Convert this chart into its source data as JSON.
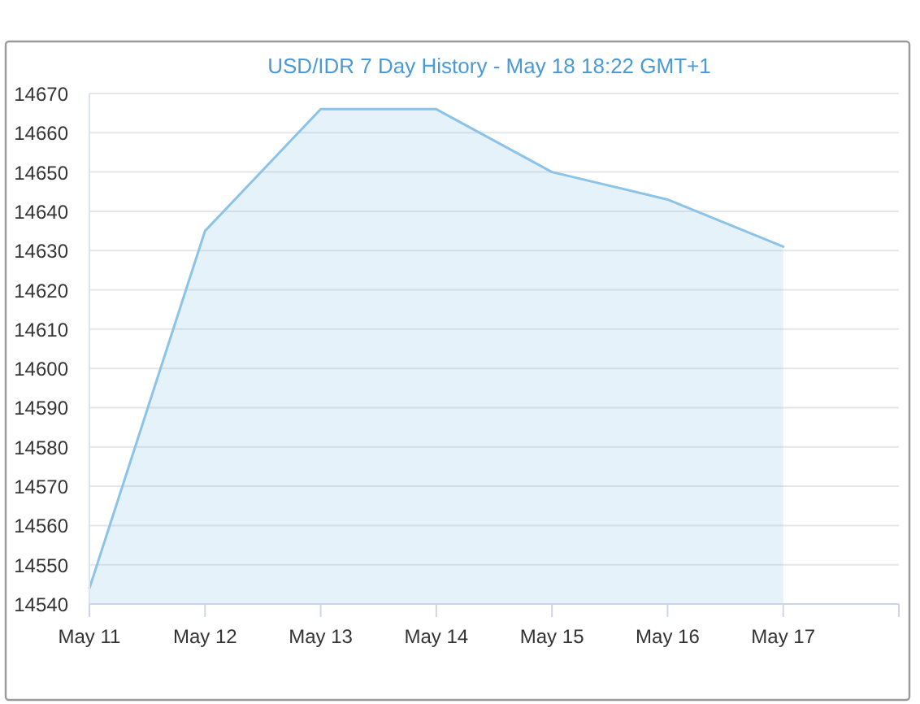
{
  "chart_data": {
    "type": "area",
    "title": "USD/IDR 7 Day History - May 18 18:22 GMT+1",
    "x": [
      "--05-11",
      "--05-12",
      "--05-13",
      "--05-14",
      "--05-15",
      "--05-16",
      "--05-17"
    ],
    "values": [
      14544,
      14635,
      14666,
      14666,
      14650,
      14643,
      14631
    ],
    "color": "#8cc3e8",
    "xlim": [
      "--05-11",
      "--05-18"
    ],
    "xticks": [
      {
        "value": "--05-11",
        "label": "May 11"
      },
      {
        "value": "--05-12",
        "label": "May 12"
      },
      {
        "value": "--05-13",
        "label": "May 13"
      },
      {
        "value": "--05-14",
        "label": "May 14"
      },
      {
        "value": "--05-15",
        "label": "May 15"
      },
      {
        "value": "--05-16",
        "label": "May 16"
      },
      {
        "value": "--05-17",
        "label": "May 17"
      },
      {
        "value": "--05-18",
        "label": null
      }
    ],
    "ylim": [
      14540,
      14670
    ],
    "yticks": [
      14540,
      14550,
      14560,
      14570,
      14580,
      14590,
      14600,
      14610,
      14620,
      14630,
      14640,
      14650,
      14660,
      14670
    ],
    "grid": "y"
  }
}
